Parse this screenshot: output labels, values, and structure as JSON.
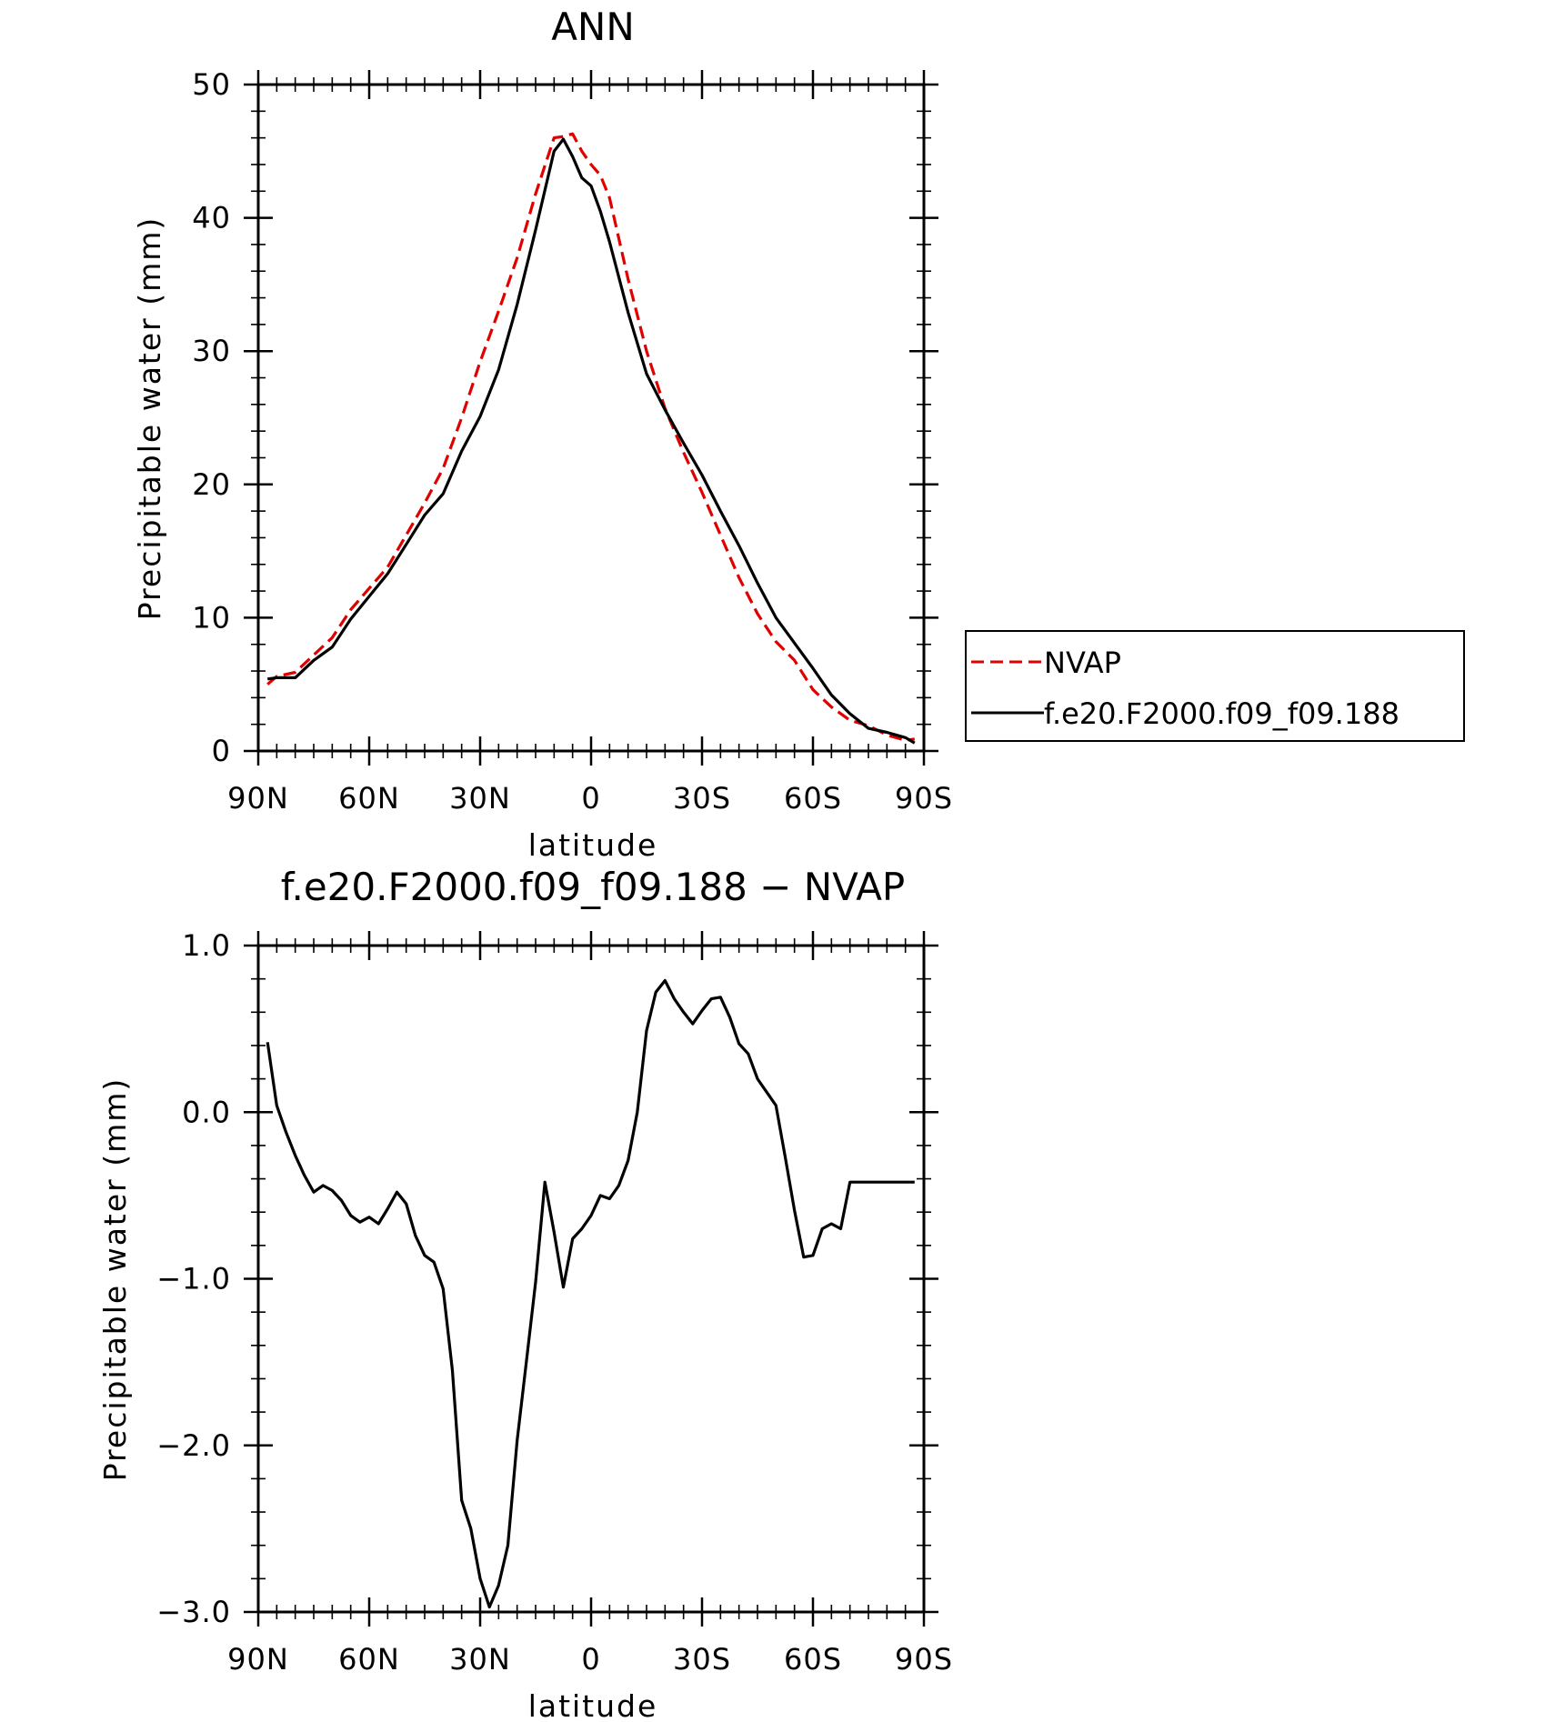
{
  "chart_data": [
    {
      "type": "line",
      "title": "ANN",
      "xlabel": "latitude",
      "ylabel": "Precipitable water (mm)",
      "xlim": [
        90,
        -90
      ],
      "ylim": [
        0,
        50
      ],
      "x_ticks": [
        {
          "value": 90,
          "label": "90N"
        },
        {
          "value": 60,
          "label": "60N"
        },
        {
          "value": 30,
          "label": "30N"
        },
        {
          "value": 0,
          "label": "0"
        },
        {
          "value": -30,
          "label": "30S"
        },
        {
          "value": -60,
          "label": "60S"
        },
        {
          "value": -90,
          "label": "90S"
        }
      ],
      "y_ticks": [
        {
          "value": 0,
          "label": "0"
        },
        {
          "value": 10,
          "label": "10"
        },
        {
          "value": 20,
          "label": "20"
        },
        {
          "value": 30,
          "label": "30"
        },
        {
          "value": 40,
          "label": "40"
        },
        {
          "value": 50,
          "label": "50"
        }
      ],
      "legend": {
        "placement": "right"
      },
      "series": [
        {
          "name": "NVAP",
          "color": "#e00000",
          "style": "dashed",
          "x": [
            87.5,
            85,
            80,
            75,
            70,
            65,
            60,
            55,
            50,
            45,
            40,
            35,
            30,
            25,
            20,
            15,
            10,
            7.5,
            5,
            2.5,
            0,
            -2.5,
            -5,
            -10,
            -15,
            -20,
            -25,
            -30,
            -35,
            -40,
            -45,
            -50,
            -55,
            -60,
            -65,
            -70,
            -75,
            -80,
            -85,
            -87.5
          ],
          "y": [
            5.0,
            5.6,
            5.9,
            7.2,
            8.5,
            10.6,
            12.2,
            13.8,
            16.2,
            18.6,
            21.2,
            25.0,
            29.2,
            33.0,
            37.0,
            41.8,
            46.0,
            46.1,
            46.3,
            45.0,
            44.0,
            43.2,
            41.5,
            35.4,
            30.0,
            25.7,
            22.4,
            19.4,
            16.2,
            13.0,
            10.3,
            8.2,
            6.8,
            4.6,
            3.3,
            2.3,
            1.9,
            1.2,
            0.8,
            0.9
          ]
        },
        {
          "name": "f.e20.F2000.f09_f09.188",
          "color": "#000000",
          "style": "solid",
          "x": [
            87.5,
            85,
            80,
            75,
            70,
            65,
            60,
            55,
            50,
            45,
            40,
            35,
            30,
            25,
            20,
            15,
            10,
            7.5,
            5,
            2.5,
            0,
            -2.5,
            -5,
            -10,
            -15,
            -20,
            -25,
            -30,
            -35,
            -40,
            -45,
            -50,
            -55,
            -60,
            -65,
            -70,
            -75,
            -80,
            -85,
            -87.5
          ],
          "y": [
            5.4,
            5.5,
            5.5,
            6.8,
            7.8,
            9.9,
            11.6,
            13.3,
            15.5,
            17.7,
            19.3,
            22.5,
            25.1,
            28.6,
            33.5,
            39.1,
            45.0,
            45.9,
            44.6,
            43.0,
            42.4,
            40.5,
            38.2,
            32.9,
            28.3,
            25.6,
            23.1,
            20.7,
            18.0,
            15.4,
            12.6,
            10.0,
            8.1,
            6.2,
            4.2,
            2.8,
            1.7,
            1.4,
            1.0,
            0.6
          ]
        }
      ]
    },
    {
      "type": "line",
      "title": "f.e20.F2000.f09_f09.188 − NVAP",
      "xlabel": "latitude",
      "ylabel": "Precipitable water (mm)",
      "xlim": [
        90,
        -90
      ],
      "ylim": [
        -3.0,
        1.0
      ],
      "x_ticks": [
        {
          "value": 90,
          "label": "90N"
        },
        {
          "value": 60,
          "label": "60N"
        },
        {
          "value": 30,
          "label": "30N"
        },
        {
          "value": 0,
          "label": "0"
        },
        {
          "value": -30,
          "label": "30S"
        },
        {
          "value": -60,
          "label": "60S"
        },
        {
          "value": -90,
          "label": "90S"
        }
      ],
      "y_ticks": [
        {
          "value": 1.0,
          "label": "1.0"
        },
        {
          "value": 0.0,
          "label": "0.0"
        },
        {
          "value": -1.0,
          "label": "−1.0"
        },
        {
          "value": -2.0,
          "label": "−2.0"
        },
        {
          "value": -3.0,
          "label": "−3.0"
        }
      ],
      "series": [
        {
          "color": "#000000",
          "style": "solid",
          "x": [
            87.5,
            85,
            82.5,
            80,
            77.5,
            75,
            72.5,
            70,
            67.5,
            65,
            62.5,
            60,
            57.5,
            55,
            52.5,
            50,
            47.5,
            45,
            42.5,
            40,
            37.5,
            35,
            32.5,
            30,
            27.5,
            25,
            22.5,
            20,
            17.5,
            15,
            12.5,
            10,
            7.5,
            5,
            2.5,
            0,
            -2.5,
            -5,
            -7.5,
            -10,
            -12.5,
            -15,
            -17.5,
            -20,
            -22.5,
            -25,
            -27.5,
            -30,
            -32.5,
            -35,
            -37.5,
            -40,
            -42.5,
            -45,
            -47.5,
            -50,
            -52.5,
            -55,
            -57.5,
            -60,
            -62.5,
            -65,
            -67.5,
            -70,
            -72.5,
            -75,
            -77.5,
            -80,
            -82.5,
            -85,
            -87.5
          ],
          "y": [
            0.42,
            0.04,
            -0.12,
            -0.26,
            -0.38,
            -0.48,
            -0.44,
            -0.47,
            -0.53,
            -0.62,
            -0.66,
            -0.63,
            -0.67,
            -0.58,
            -0.48,
            -0.55,
            -0.74,
            -0.86,
            -0.9,
            -1.06,
            -1.55,
            -2.33,
            -2.5,
            -2.8,
            -2.97,
            -2.84,
            -2.6,
            -1.97,
            -1.5,
            -1.02,
            -0.42,
            -0.72,
            -1.05,
            -0.76,
            -0.7,
            -0.62,
            -0.5,
            -0.52,
            -0.44,
            -0.29,
            0.0,
            0.49,
            0.72,
            0.79,
            0.68,
            0.6,
            0.53,
            0.61,
            0.68,
            0.69,
            0.57,
            0.41,
            0.35,
            0.2,
            0.12,
            0.04,
            -0.27,
            -0.59,
            -0.87,
            -0.86,
            -0.7,
            -0.67,
            -0.7,
            -0.42,
            -0.42,
            -0.42,
            -0.42,
            -0.42,
            -0.42,
            -0.42,
            -0.42
          ]
        }
      ]
    }
  ]
}
